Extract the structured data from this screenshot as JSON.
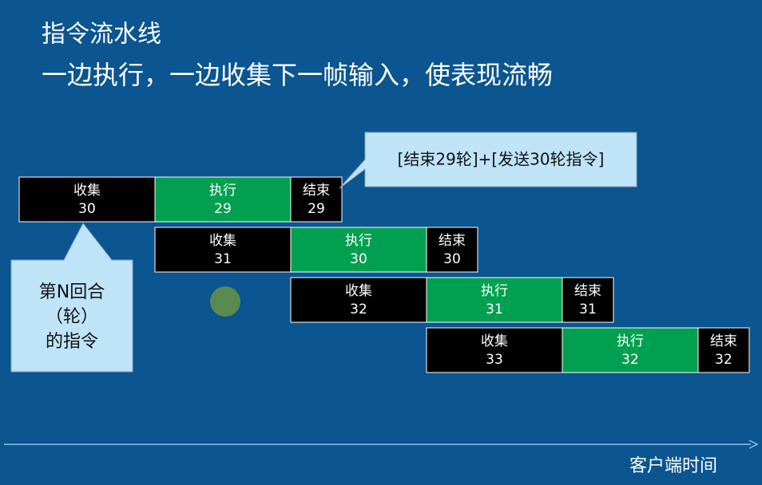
{
  "header": {
    "title": "指令流水线",
    "subtitle": "一边执行，一边收集下一帧输入，使表现流畅"
  },
  "pipeline": {
    "rows": [
      {
        "cells": [
          {
            "label": "收集",
            "round": 30
          },
          {
            "label": "执行",
            "round": 29
          },
          {
            "label": "结束",
            "round": 29
          }
        ]
      },
      {
        "cells": [
          {
            "label": "收集",
            "round": 31
          },
          {
            "label": "执行",
            "round": 30
          },
          {
            "label": "结束",
            "round": 30
          }
        ]
      },
      {
        "cells": [
          {
            "label": "收集",
            "round": 32
          },
          {
            "label": "执行",
            "round": 31
          },
          {
            "label": "结束",
            "round": 31
          }
        ]
      },
      {
        "cells": [
          {
            "label": "收集",
            "round": 33
          },
          {
            "label": "执行",
            "round": 32
          },
          {
            "label": "结束",
            "round": 32
          }
        ]
      }
    ]
  },
  "callouts": {
    "top": "[结束29轮]+[发送30轮指令]",
    "left": [
      "第N回合",
      "（轮）",
      "的指令"
    ]
  },
  "axis": {
    "label": "客户端时间"
  }
}
